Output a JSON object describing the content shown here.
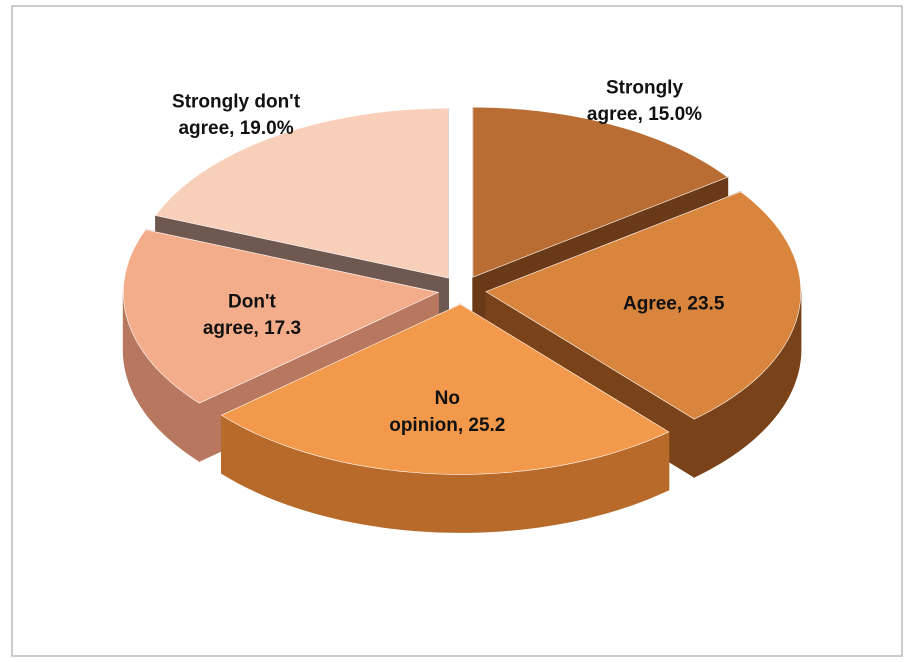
{
  "chart_data": {
    "type": "pie3d",
    "categories": [
      "Strongly agree",
      "Agree",
      "No opinion",
      "Don't agree",
      "Strongly don't agree"
    ],
    "values": [
      15.0,
      23.5,
      25.2,
      17.3,
      19.0
    ],
    "value_labels": [
      "15.0%",
      "23.5",
      "25.2",
      "17.3",
      "19.0%"
    ],
    "label_separator": ", ",
    "colors": [
      "#b96d33",
      "#d9853d",
      "#f2994b",
      "#f3ad8a",
      "#f8cfb9"
    ],
    "side_colors": [
      "#6a3a18",
      "#7a4218",
      "#b86a2a",
      "#b87860",
      "#6e5850"
    ]
  }
}
